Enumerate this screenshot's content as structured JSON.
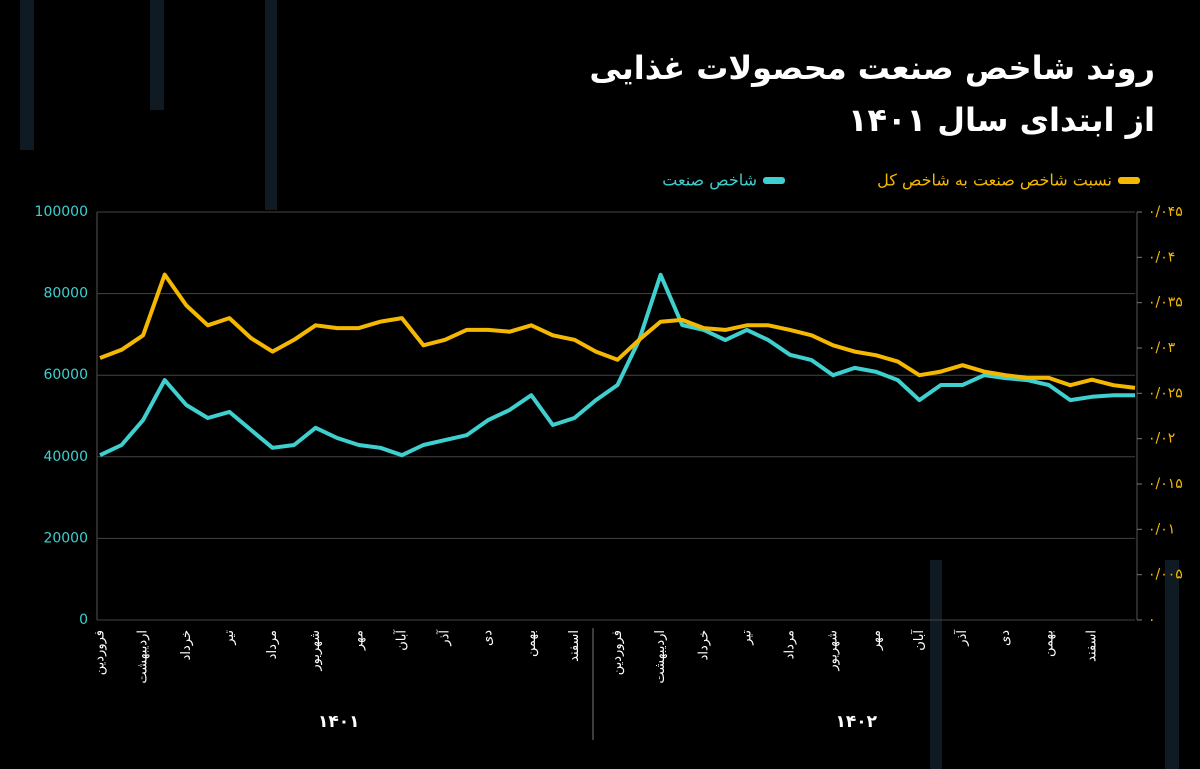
{
  "chart_data": {
    "type": "line",
    "title": "روند شاخص صنعت محصولات غذایی",
    "subtitle": "از ابتدای سال ۱۴۰۱",
    "categories": [
      "فروردین",
      null,
      "اردیبهشت",
      null,
      "خرداد",
      null,
      "تیر",
      null,
      "مرداد",
      null,
      "شهریور",
      null,
      "مهر",
      null,
      "آبان",
      null,
      "آذر",
      null,
      "دی",
      null,
      "بهمن",
      null,
      "اسفند",
      null,
      "فروردین",
      null,
      "اردیبهشت",
      null,
      "خرداد",
      null,
      "تیر",
      null,
      "مرداد",
      null,
      "شهریور",
      null,
      "مهر",
      null,
      "آبان",
      null,
      "آذر",
      null,
      "دی",
      null,
      "بهمن",
      null,
      "اسفند",
      null,
      null
    ],
    "groups": [
      "۱۴۰۱",
      "۱۴۰۲"
    ],
    "series": [
      {
        "name": "شاخص صنعت",
        "color": "#3fcfcf",
        "values": [
          40400,
          42900,
          49000,
          58800,
          52700,
          49500,
          51000,
          46600,
          42200,
          42900,
          47100,
          44600,
          42900,
          42200,
          40400,
          42900,
          44100,
          45300,
          49000,
          51500,
          55100,
          47800,
          49500,
          53900,
          57600,
          68600,
          84600,
          72300,
          71100,
          68600,
          71100,
          68600,
          65000,
          63700,
          60000,
          61800,
          60800,
          58800,
          53900,
          57600,
          57600,
          60000,
          59300,
          58800,
          57600,
          53900,
          54700,
          55100,
          55100
        ]
      },
      {
        "name": "نسبت شاخص صنعت به شاخص کل",
        "color": "#f5b800",
        "axis": "y2",
        "values": [
          0.0289,
          0.0298,
          0.0314,
          0.0381,
          0.0347,
          0.0325,
          0.0333,
          0.0311,
          0.0296,
          0.0309,
          0.0325,
          0.0322,
          0.0322,
          0.0329,
          0.0333,
          0.0303,
          0.0309,
          0.032,
          0.032,
          0.0318,
          0.0325,
          0.0314,
          0.0309,
          0.0296,
          0.0287,
          0.0309,
          0.0329,
          0.0331,
          0.0322,
          0.032,
          0.0325,
          0.0325,
          0.032,
          0.0314,
          0.0303,
          0.0296,
          0.0292,
          0.0285,
          0.027,
          0.0274,
          0.0281,
          0.0274,
          0.027,
          0.0267,
          0.0267,
          0.0259,
          0.0265,
          0.0259,
          0.0256
        ]
      }
    ],
    "ylim": [
      0,
      100000
    ],
    "yticks": [
      0,
      20000,
      40000,
      60000,
      80000,
      100000
    ],
    "y2lim": [
      0,
      0.045
    ],
    "y2ticks": [
      {
        "value": 0,
        "label": "۰"
      },
      {
        "value": 0.005,
        "label": "۰/۰۰۵"
      },
      {
        "value": 0.01,
        "label": "۰/۰۱"
      },
      {
        "value": 0.015,
        "label": "۰/۰۱۵"
      },
      {
        "value": 0.02,
        "label": "۰/۰۲"
      },
      {
        "value": 0.025,
        "label": "۰/۰۲۵"
      },
      {
        "value": 0.03,
        "label": "۰/۰۳"
      },
      {
        "value": 0.035,
        "label": "۰/۰۳۵"
      },
      {
        "value": 0.04,
        "label": "۰/۰۴"
      },
      {
        "value": 0.045,
        "label": "۰/۰۴۵"
      }
    ],
    "grid": true
  }
}
